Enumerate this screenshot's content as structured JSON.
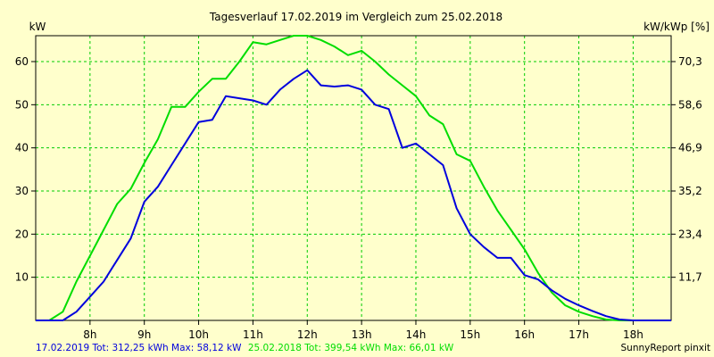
{
  "chart_data": {
    "type": "line",
    "title": "Tagesverlauf 17.02.2019 im Vergleich zum 25.02.2018",
    "ylabel_left": "kW",
    "ylabel_right": "kW/kWp [%]",
    "x_ticks": [
      "8h",
      "9h",
      "10h",
      "11h",
      "12h",
      "13h",
      "14h",
      "15h",
      "16h",
      "17h",
      "18h"
    ],
    "xlim": [
      7.0,
      18.7
    ],
    "ylim": [
      0,
      66
    ],
    "y_ticks_left": [
      "10",
      "20",
      "30",
      "40",
      "50",
      "60"
    ],
    "y_ticks_right": [
      "11,7",
      "23,4",
      "35,2",
      "46,9",
      "58,6",
      "70,3"
    ],
    "grid": true,
    "series": [
      {
        "color": "#0000dd",
        "x": [
          7.0,
          7.5,
          7.75,
          8.0,
          8.25,
          8.5,
          8.75,
          9.0,
          9.25,
          9.5,
          9.75,
          10.0,
          10.25,
          10.5,
          10.75,
          11.0,
          11.25,
          11.5,
          11.75,
          12.0,
          12.25,
          12.5,
          12.75,
          13.0,
          13.25,
          13.5,
          13.75,
          14.0,
          14.25,
          14.5,
          14.75,
          15.0,
          15.25,
          15.5,
          15.75,
          16.0,
          16.25,
          16.5,
          16.75,
          17.0,
          17.25,
          17.5,
          17.75,
          18.0,
          18.25,
          18.5,
          18.7
        ],
        "y": [
          0,
          0,
          2,
          5.5,
          9,
          14,
          19,
          27.5,
          31,
          36,
          41,
          46,
          46.5,
          52,
          51.5,
          51,
          50,
          53.5,
          56,
          58,
          54.5,
          54.2,
          54.5,
          53.5,
          50,
          49,
          40,
          41,
          38.5,
          36,
          26,
          20,
          17,
          14.5,
          14.5,
          10.5,
          9.5,
          7,
          5,
          3.5,
          2.2,
          1,
          0.2,
          0,
          0,
          0,
          0
        ]
      },
      {
        "color": "#00dd00",
        "x": [
          7.0,
          7.25,
          7.5,
          7.75,
          8.0,
          8.25,
          8.5,
          8.75,
          9.0,
          9.25,
          9.5,
          9.75,
          10.0,
          10.25,
          10.5,
          10.75,
          11.0,
          11.25,
          11.5,
          11.75,
          12.0,
          12.25,
          12.5,
          12.75,
          13.0,
          13.25,
          13.5,
          13.75,
          14.0,
          14.25,
          14.5,
          14.75,
          15.0,
          15.25,
          15.5,
          15.75,
          16.0,
          16.25,
          16.5,
          16.75,
          17.0,
          17.25,
          17.5,
          17.75,
          18.0,
          18.25,
          18.5,
          18.7
        ],
        "y": [
          0,
          0,
          2,
          9,
          15,
          21,
          27,
          30.5,
          36.5,
          42,
          49.5,
          49.5,
          53,
          56,
          56,
          60,
          64.5,
          64,
          65,
          66,
          66,
          65,
          63.5,
          61.5,
          62.5,
          60,
          57,
          54.5,
          52,
          47.5,
          45.5,
          38.5,
          37,
          31,
          25.5,
          21,
          16.5,
          11,
          6.5,
          3.5,
          2,
          1,
          0.2,
          0,
          0,
          0,
          0,
          0
        ]
      }
    ]
  },
  "footer": {
    "legend_blue": "17.02.2019 Tot: 312,25 kWh Max: 58,12 kW",
    "legend_green": "25.02.2018 Tot: 399,54 kWh Max: 66,01 kW",
    "brand": "SunnyReport pinxit"
  },
  "colors": {
    "background": "#ffffcc",
    "grid": "#00cc00",
    "blue": "#0000dd",
    "green": "#00dd00"
  }
}
